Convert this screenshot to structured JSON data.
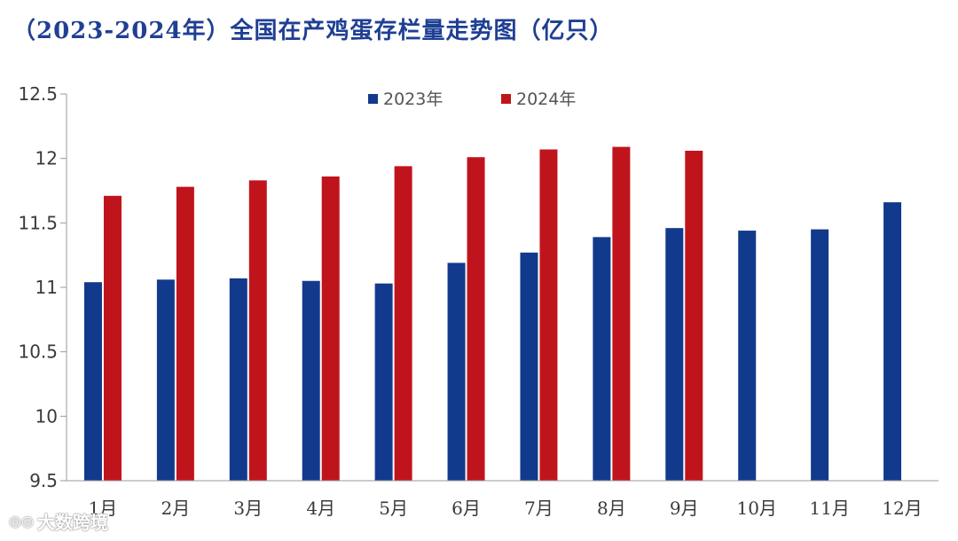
{
  "title": "（2023-2024年）全国在产鸡蛋存栏量走势图（亿只）",
  "watermark": "大数跨境",
  "chart_data": {
    "type": "bar",
    "title": "（2023-2024年）全国在产鸡蛋存栏量走势图（亿只）",
    "categories": [
      "1月",
      "2月",
      "3月",
      "4月",
      "5月",
      "6月",
      "7月",
      "8月",
      "9月",
      "10月",
      "11月",
      "12月"
    ],
    "series": [
      {
        "name": "2023年",
        "color": "#123a8c",
        "values": [
          11.04,
          11.06,
          11.07,
          11.05,
          11.03,
          11.19,
          11.27,
          11.39,
          11.46,
          11.44,
          11.45,
          11.66
        ]
      },
      {
        "name": "2024年",
        "color": "#c0141c",
        "values": [
          11.71,
          11.78,
          11.83,
          11.86,
          11.94,
          12.01,
          12.07,
          12.09,
          12.06,
          null,
          null,
          null
        ]
      }
    ],
    "ylim": [
      9.5,
      12.5
    ],
    "yticks": [
      "9.5",
      "10",
      "10.5",
      "11",
      "11.5",
      "12",
      "12.5"
    ],
    "xlabel": "",
    "ylabel": "",
    "legend_position": "top-center",
    "grid": false
  }
}
